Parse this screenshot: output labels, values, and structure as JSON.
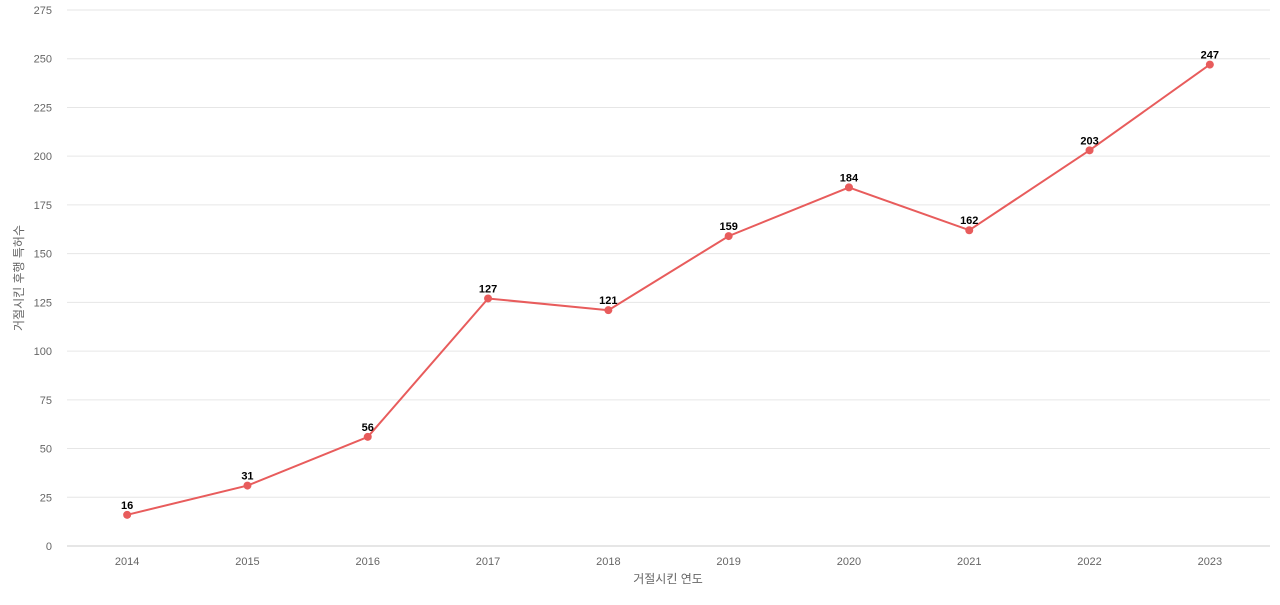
{
  "chart_data": {
    "type": "line",
    "title": "",
    "xlabel": "거절시킨 연도",
    "ylabel": "거절시킨 후행 특허수",
    "categories": [
      "2014",
      "2015",
      "2016",
      "2017",
      "2018",
      "2019",
      "2020",
      "2021",
      "2022",
      "2023"
    ],
    "series": [
      {
        "values": [
          16,
          31,
          56,
          127,
          121,
          159,
          184,
          162,
          203,
          247
        ],
        "color": "#e85c5c"
      }
    ],
    "ylim": [
      0,
      275
    ],
    "yticks": [
      0,
      25,
      50,
      75,
      100,
      125,
      150,
      175,
      200,
      225,
      250,
      275
    ],
    "grid": true,
    "data_labels": true,
    "legend": "none"
  }
}
